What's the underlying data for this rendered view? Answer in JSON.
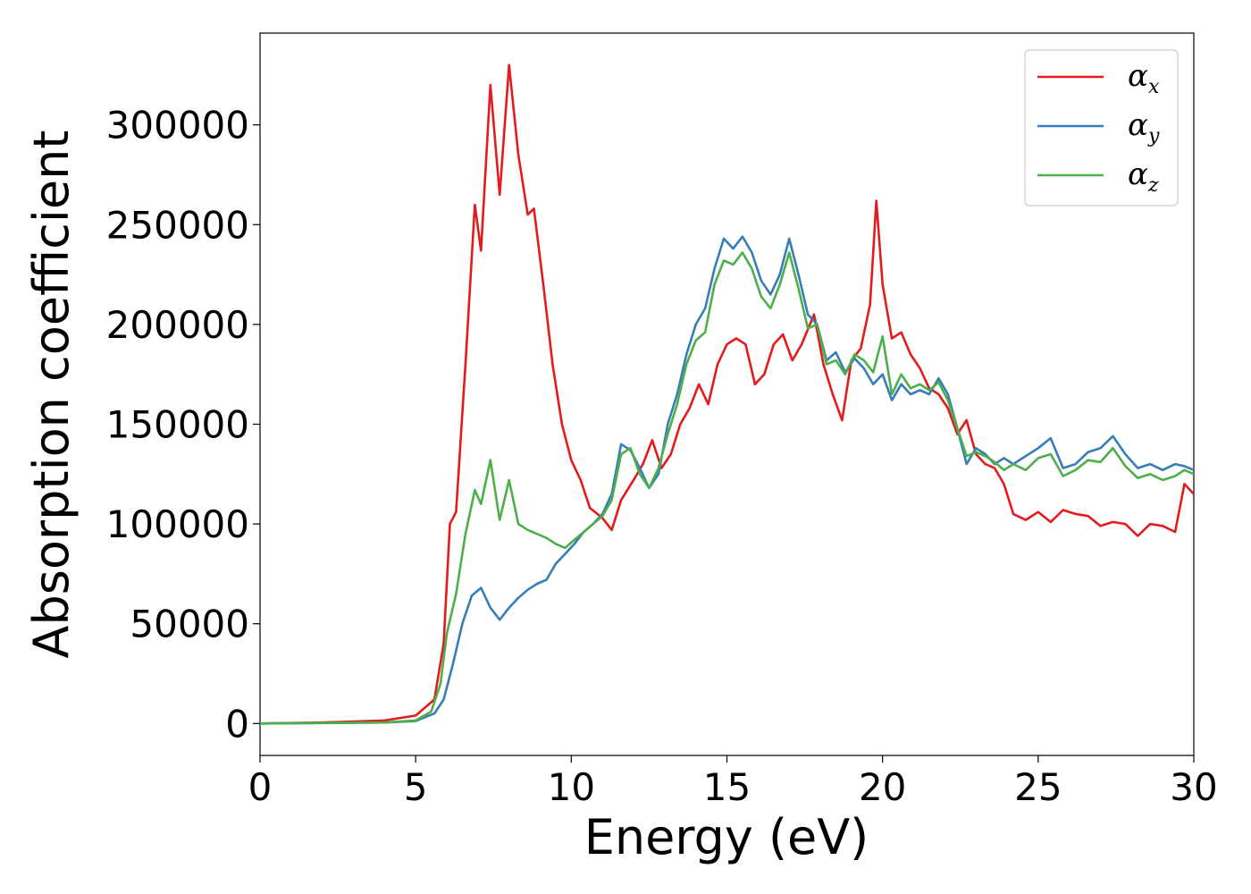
{
  "chart_data": {
    "type": "line",
    "xlabel": "Energy (eV)",
    "ylabel": "Absorption coefficient",
    "xlim": [
      0,
      30
    ],
    "ylim": [
      -16000,
      346000
    ],
    "x_ticks": [
      "0",
      "5",
      "10",
      "15",
      "20",
      "25",
      "30"
    ],
    "y_ticks": [
      "0",
      "50000",
      "100000",
      "150000",
      "200000",
      "250000",
      "300000"
    ],
    "grid": false,
    "legend_position": "top-right",
    "series": [
      {
        "name": "α",
        "subscript": "x",
        "color": "#e41a1c",
        "points": [
          [
            0,
            0
          ],
          [
            2,
            500
          ],
          [
            4,
            1500
          ],
          [
            5,
            4000
          ],
          [
            5.6,
            12000
          ],
          [
            5.9,
            40000
          ],
          [
            6.1,
            100000
          ],
          [
            6.3,
            106000
          ],
          [
            6.6,
            180000
          ],
          [
            6.9,
            260000
          ],
          [
            7.1,
            237000
          ],
          [
            7.4,
            320000
          ],
          [
            7.7,
            265000
          ],
          [
            8.0,
            330000
          ],
          [
            8.3,
            285000
          ],
          [
            8.6,
            255000
          ],
          [
            8.8,
            258000
          ],
          [
            9.1,
            220000
          ],
          [
            9.4,
            180000
          ],
          [
            9.7,
            150000
          ],
          [
            10.0,
            132000
          ],
          [
            10.3,
            122000
          ],
          [
            10.6,
            108000
          ],
          [
            11.0,
            103000
          ],
          [
            11.3,
            97000
          ],
          [
            11.6,
            112000
          ],
          [
            12.0,
            122000
          ],
          [
            12.3,
            130000
          ],
          [
            12.6,
            142000
          ],
          [
            12.9,
            128000
          ],
          [
            13.2,
            135000
          ],
          [
            13.5,
            150000
          ],
          [
            13.8,
            158000
          ],
          [
            14.1,
            170000
          ],
          [
            14.4,
            160000
          ],
          [
            14.7,
            180000
          ],
          [
            15.0,
            190000
          ],
          [
            15.3,
            193000
          ],
          [
            15.6,
            190000
          ],
          [
            15.9,
            170000
          ],
          [
            16.2,
            175000
          ],
          [
            16.5,
            190000
          ],
          [
            16.8,
            195000
          ],
          [
            17.1,
            182000
          ],
          [
            17.4,
            190000
          ],
          [
            17.8,
            205000
          ],
          [
            18.1,
            180000
          ],
          [
            18.4,
            165000
          ],
          [
            18.7,
            152000
          ],
          [
            19.0,
            182000
          ],
          [
            19.3,
            188000
          ],
          [
            19.6,
            210000
          ],
          [
            19.8,
            262000
          ],
          [
            20.0,
            220000
          ],
          [
            20.3,
            193000
          ],
          [
            20.6,
            196000
          ],
          [
            20.9,
            185000
          ],
          [
            21.2,
            178000
          ],
          [
            21.5,
            168000
          ],
          [
            21.8,
            165000
          ],
          [
            22.1,
            158000
          ],
          [
            22.4,
            145000
          ],
          [
            22.7,
            152000
          ],
          [
            23.0,
            135000
          ],
          [
            23.3,
            130000
          ],
          [
            23.6,
            128000
          ],
          [
            23.9,
            120000
          ],
          [
            24.2,
            105000
          ],
          [
            24.6,
            102000
          ],
          [
            25.0,
            106000
          ],
          [
            25.4,
            101000
          ],
          [
            25.8,
            107000
          ],
          [
            26.2,
            105000
          ],
          [
            26.6,
            104000
          ],
          [
            27.0,
            99000
          ],
          [
            27.4,
            101000
          ],
          [
            27.8,
            100000
          ],
          [
            28.2,
            94000
          ],
          [
            28.6,
            100000
          ],
          [
            29.0,
            99000
          ],
          [
            29.4,
            96000
          ],
          [
            29.7,
            120000
          ],
          [
            30.0,
            115000
          ]
        ]
      },
      {
        "name": "α",
        "subscript": "y",
        "color": "#377eb8",
        "points": [
          [
            0,
            0
          ],
          [
            4,
            500
          ],
          [
            5,
            1200
          ],
          [
            5.6,
            5000
          ],
          [
            5.9,
            12000
          ],
          [
            6.2,
            30000
          ],
          [
            6.5,
            50000
          ],
          [
            6.8,
            64000
          ],
          [
            7.1,
            68000
          ],
          [
            7.4,
            58000
          ],
          [
            7.7,
            52000
          ],
          [
            8.0,
            58000
          ],
          [
            8.3,
            63000
          ],
          [
            8.6,
            67000
          ],
          [
            8.9,
            70000
          ],
          [
            9.2,
            72000
          ],
          [
            9.5,
            80000
          ],
          [
            9.8,
            85000
          ],
          [
            10.1,
            90000
          ],
          [
            10.4,
            96000
          ],
          [
            10.7,
            100000
          ],
          [
            11.0,
            105000
          ],
          [
            11.3,
            115000
          ],
          [
            11.6,
            140000
          ],
          [
            11.9,
            137000
          ],
          [
            12.2,
            128000
          ],
          [
            12.5,
            118000
          ],
          [
            12.8,
            125000
          ],
          [
            13.1,
            150000
          ],
          [
            13.4,
            165000
          ],
          [
            13.7,
            185000
          ],
          [
            14.0,
            200000
          ],
          [
            14.3,
            208000
          ],
          [
            14.6,
            228000
          ],
          [
            14.9,
            243000
          ],
          [
            15.2,
            238000
          ],
          [
            15.5,
            244000
          ],
          [
            15.8,
            236000
          ],
          [
            16.1,
            222000
          ],
          [
            16.4,
            215000
          ],
          [
            16.7,
            225000
          ],
          [
            17.0,
            243000
          ],
          [
            17.3,
            225000
          ],
          [
            17.6,
            205000
          ],
          [
            17.9,
            200000
          ],
          [
            18.2,
            182000
          ],
          [
            18.5,
            186000
          ],
          [
            18.8,
            176000
          ],
          [
            19.1,
            183000
          ],
          [
            19.4,
            178000
          ],
          [
            19.7,
            170000
          ],
          [
            20.0,
            175000
          ],
          [
            20.3,
            162000
          ],
          [
            20.6,
            170000
          ],
          [
            20.9,
            165000
          ],
          [
            21.2,
            167000
          ],
          [
            21.5,
            165000
          ],
          [
            21.8,
            173000
          ],
          [
            22.1,
            165000
          ],
          [
            22.4,
            148000
          ],
          [
            22.7,
            130000
          ],
          [
            23.0,
            138000
          ],
          [
            23.3,
            135000
          ],
          [
            23.6,
            130000
          ],
          [
            23.9,
            133000
          ],
          [
            24.2,
            130000
          ],
          [
            24.6,
            134000
          ],
          [
            25.0,
            138000
          ],
          [
            25.4,
            143000
          ],
          [
            25.8,
            128000
          ],
          [
            26.2,
            130000
          ],
          [
            26.6,
            136000
          ],
          [
            27.0,
            138000
          ],
          [
            27.4,
            144000
          ],
          [
            27.8,
            135000
          ],
          [
            28.2,
            128000
          ],
          [
            28.6,
            130000
          ],
          [
            29.0,
            127000
          ],
          [
            29.4,
            130000
          ],
          [
            29.7,
            129000
          ],
          [
            30.0,
            127000
          ]
        ]
      },
      {
        "name": "α",
        "subscript": "z",
        "color": "#4daf4a",
        "points": [
          [
            0,
            0
          ],
          [
            4,
            500
          ],
          [
            5,
            1500
          ],
          [
            5.5,
            6000
          ],
          [
            5.8,
            20000
          ],
          [
            6.0,
            45000
          ],
          [
            6.3,
            65000
          ],
          [
            6.6,
            95000
          ],
          [
            6.9,
            117000
          ],
          [
            7.1,
            110000
          ],
          [
            7.4,
            132000
          ],
          [
            7.7,
            102000
          ],
          [
            8.0,
            122000
          ],
          [
            8.3,
            100000
          ],
          [
            8.6,
            97000
          ],
          [
            8.9,
            95000
          ],
          [
            9.2,
            93000
          ],
          [
            9.5,
            90000
          ],
          [
            9.8,
            88000
          ],
          [
            10.1,
            92000
          ],
          [
            10.4,
            96000
          ],
          [
            10.7,
            100000
          ],
          [
            11.0,
            104000
          ],
          [
            11.3,
            112000
          ],
          [
            11.6,
            135000
          ],
          [
            11.9,
            138000
          ],
          [
            12.2,
            125000
          ],
          [
            12.5,
            118000
          ],
          [
            12.8,
            128000
          ],
          [
            13.1,
            145000
          ],
          [
            13.4,
            160000
          ],
          [
            13.7,
            180000
          ],
          [
            14.0,
            192000
          ],
          [
            14.3,
            196000
          ],
          [
            14.6,
            220000
          ],
          [
            14.9,
            232000
          ],
          [
            15.2,
            230000
          ],
          [
            15.5,
            236000
          ],
          [
            15.8,
            228000
          ],
          [
            16.1,
            214000
          ],
          [
            16.4,
            208000
          ],
          [
            16.7,
            220000
          ],
          [
            17.0,
            236000
          ],
          [
            17.3,
            218000
          ],
          [
            17.6,
            198000
          ],
          [
            17.9,
            200000
          ],
          [
            18.2,
            180000
          ],
          [
            18.5,
            182000
          ],
          [
            18.8,
            175000
          ],
          [
            19.1,
            185000
          ],
          [
            19.4,
            182000
          ],
          [
            19.7,
            176000
          ],
          [
            20.0,
            194000
          ],
          [
            20.3,
            165000
          ],
          [
            20.6,
            175000
          ],
          [
            20.9,
            168000
          ],
          [
            21.2,
            170000
          ],
          [
            21.5,
            167000
          ],
          [
            21.8,
            171000
          ],
          [
            22.1,
            162000
          ],
          [
            22.4,
            148000
          ],
          [
            22.7,
            134000
          ],
          [
            23.0,
            136000
          ],
          [
            23.3,
            134000
          ],
          [
            23.6,
            131000
          ],
          [
            23.9,
            127000
          ],
          [
            24.2,
            130000
          ],
          [
            24.6,
            127000
          ],
          [
            25.0,
            133000
          ],
          [
            25.4,
            135000
          ],
          [
            25.8,
            124000
          ],
          [
            26.2,
            127000
          ],
          [
            26.6,
            132000
          ],
          [
            27.0,
            131000
          ],
          [
            27.4,
            138000
          ],
          [
            27.8,
            129000
          ],
          [
            28.2,
            123000
          ],
          [
            28.6,
            125000
          ],
          [
            29.0,
            122000
          ],
          [
            29.4,
            124000
          ],
          [
            29.7,
            127000
          ],
          [
            30.0,
            125000
          ]
        ]
      }
    ]
  }
}
